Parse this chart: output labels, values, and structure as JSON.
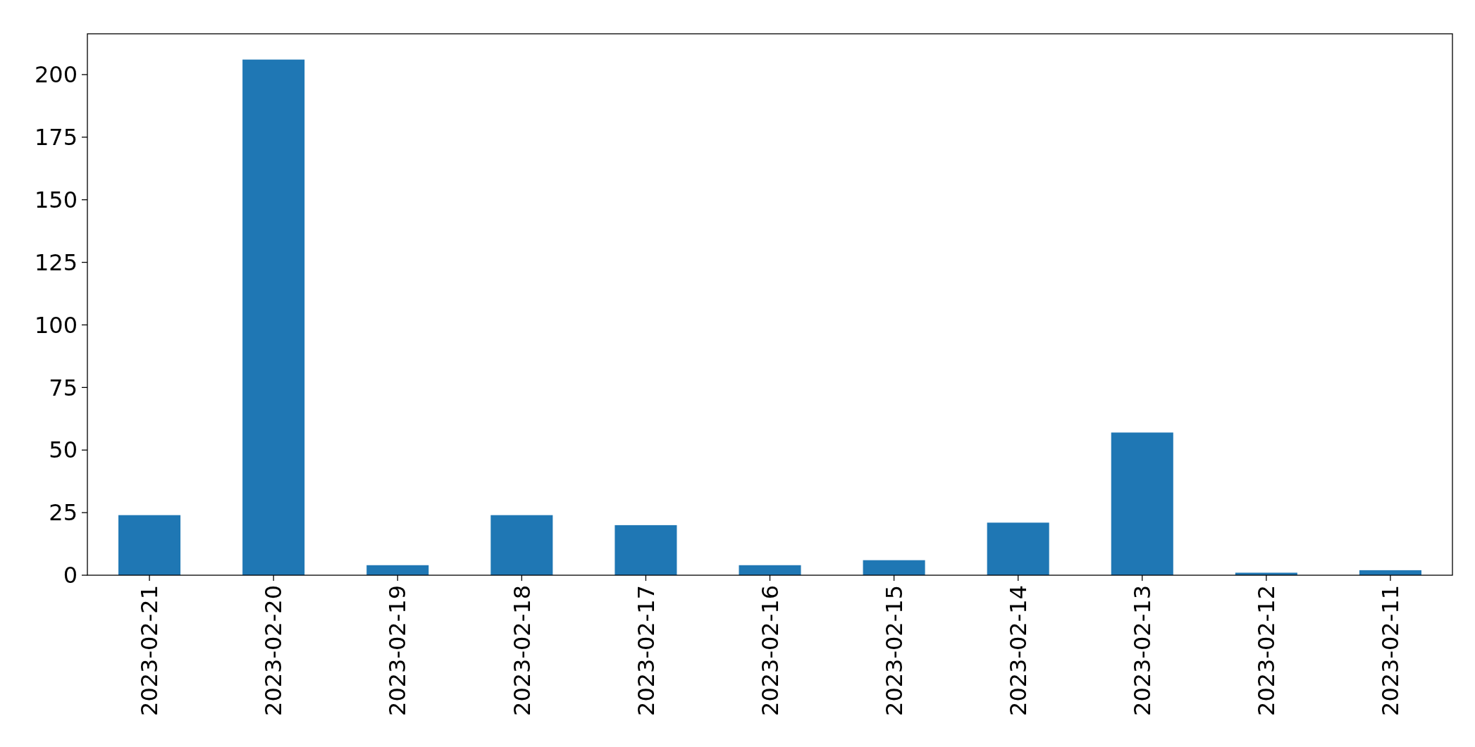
{
  "chart_data": {
    "type": "bar",
    "categories": [
      "2023-02-21",
      "2023-02-20",
      "2023-02-19",
      "2023-02-18",
      "2023-02-17",
      "2023-02-16",
      "2023-02-15",
      "2023-02-14",
      "2023-02-13",
      "2023-02-12",
      "2023-02-11"
    ],
    "values": [
      24,
      206,
      4,
      24,
      20,
      4,
      6,
      21,
      57,
      1,
      2
    ],
    "color": "#1f77b4",
    "ylim": [
      0,
      216.3
    ],
    "yticks": [
      0,
      25,
      50,
      75,
      100,
      125,
      150,
      175,
      200
    ]
  }
}
